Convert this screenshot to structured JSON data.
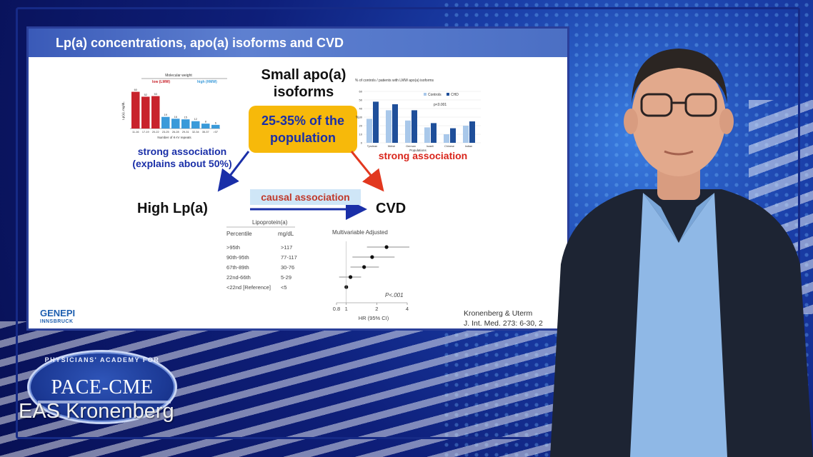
{
  "slide": {
    "title": "Lp(a) concentrations, apo(a) isoforms and CVD",
    "small_isoforms": [
      "Small apo(a)",
      "isoforms"
    ],
    "population": [
      "25-35% of the",
      "population"
    ],
    "strong_left": [
      "strong association",
      "(explains about 50%)"
    ],
    "strong_right": "strong  association",
    "causal": "causal  association",
    "high_lpa": "High Lp(a)",
    "cvd": "CVD",
    "logo_text": "GENEPI",
    "logo_sub": "INNSBRUCK",
    "citation": [
      "Kronenberg & Uterm",
      "J. Int. Med. 273: 6-30, 2"
    ]
  },
  "mini_bar": {
    "title": "Molecular weight",
    "low_label": "low (LMW)",
    "high_label": "high (HMW)",
    "ylabel": "Lp(a), mg/dL",
    "xlabel": "Number of K-IV repeats",
    "categories": [
      "11-16",
      "17-19",
      "20-22",
      "23-25",
      "26-28",
      "29-31",
      "32-34",
      "35-37",
      ">37"
    ],
    "values": [
      60,
      52,
      53,
      19,
      16,
      15,
      12,
      8,
      6
    ],
    "low_count": 3,
    "colors": {
      "low": "#c8232c",
      "high": "#3a9ad9"
    }
  },
  "mini_group": {
    "title": "% of controls / patients with LMW apo(a) isoforms",
    "legend": [
      "Controls",
      "CHD"
    ],
    "pvalue": "p<0.001",
    "ylabel": "%",
    "xlabel": "Populations",
    "categories": [
      "Tyrolean",
      "Welsh",
      "German",
      "Israeli",
      "Chinese",
      "Indian"
    ],
    "controls": [
      28,
      38,
      26,
      18,
      10,
      20
    ],
    "chd": [
      48,
      45,
      38,
      23,
      17,
      25
    ],
    "yticks": [
      0,
      10,
      20,
      30,
      40,
      50,
      60
    ],
    "colors": {
      "controls": "#a9c8ea",
      "chd": "#1f4f9a"
    }
  },
  "forest": {
    "header": "Lipoprotein(a)",
    "col_percentile": "Percentile",
    "col_mgdl": "mg/dL",
    "plot_title": "Multivariable Adjusted",
    "rows": [
      {
        "percentile": ">95th",
        "mgdl": ">117",
        "hr": 2.5,
        "lo": 1.6,
        "hi": 5.0,
        "arrow": true
      },
      {
        "percentile": "90th-95th",
        "mgdl": "77-117",
        "hr": 1.8,
        "lo": 1.15,
        "hi": 3.0,
        "arrow": false
      },
      {
        "percentile": "67th-89th",
        "mgdl": "30-76",
        "hr": 1.5,
        "lo": 1.1,
        "hi": 2.1,
        "arrow": false
      },
      {
        "percentile": "22nd-66th",
        "mgdl": "5-29",
        "hr": 1.1,
        "lo": 0.85,
        "hi": 1.4,
        "arrow": false
      },
      {
        "percentile": "<22nd [Reference]",
        "mgdl": "<5",
        "hr": 1.0,
        "lo": 1.0,
        "hi": 1.0,
        "arrow": false
      }
    ],
    "pvalue": "P<.001",
    "xticks": [
      0.8,
      1,
      2,
      4
    ],
    "xlabel": "HR (95% CI)"
  },
  "overlay": {
    "pace_arc": "PHYSICIANS' ACADEMY FOR",
    "pace_main": "PACE-CME",
    "presenter_name": "EAS Kronenberg"
  },
  "presenter": {
    "shirt": "#8fb8e6",
    "jacket": "#1d2433",
    "skin": "#e2a98c",
    "hair": "#2b2522"
  }
}
